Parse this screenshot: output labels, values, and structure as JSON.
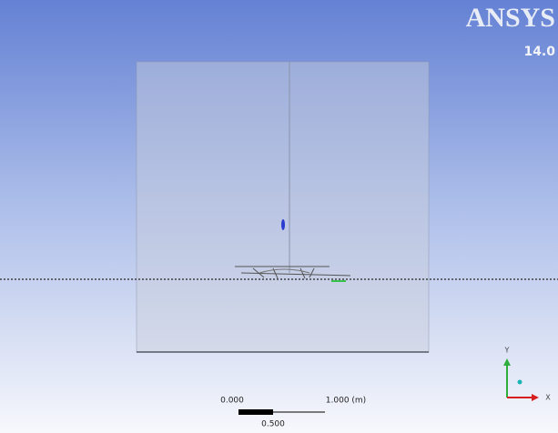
{
  "logo": {
    "brand": "ANSYS",
    "version": "14.0"
  },
  "scale_bar": {
    "left_label": "0.000",
    "right_label": "1.000 (m)",
    "middle_label": "0.500"
  },
  "triad": {
    "y_label": "Y",
    "x_label": "X"
  }
}
